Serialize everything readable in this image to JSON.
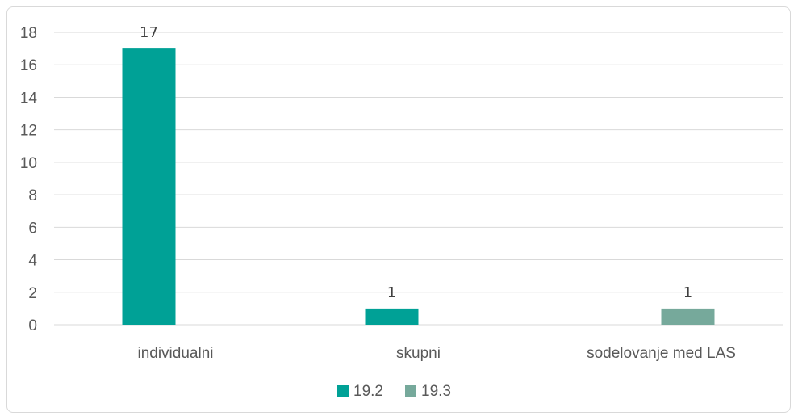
{
  "chart_data": {
    "type": "bar",
    "categories": [
      "individualni",
      "skupni",
      "sodelovanje med LAS"
    ],
    "series": [
      {
        "name": "19.2",
        "color": "#00a196",
        "values": [
          17,
          1,
          null
        ]
      },
      {
        "name": "19.3",
        "color": "#76a99b",
        "values": [
          null,
          null,
          1
        ]
      }
    ],
    "data_labels": [
      "17",
      "1",
      "1"
    ],
    "ylim": [
      0,
      18
    ],
    "yticks": [
      0,
      2,
      4,
      6,
      8,
      10,
      12,
      14,
      16,
      18
    ],
    "grid": true,
    "legend_position": "bottom",
    "title": "",
    "xlabel": "",
    "ylabel": ""
  }
}
